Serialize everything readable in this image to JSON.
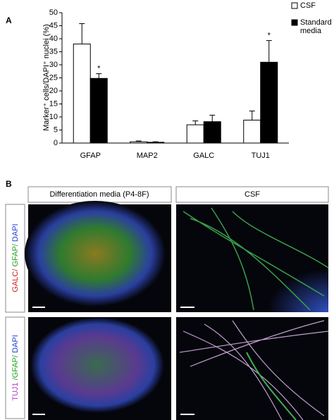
{
  "panel_a": {
    "label": "A"
  },
  "chart_data": {
    "type": "bar",
    "y_label": "Marker⁺ cells/DAPI⁺ nuclei (%)",
    "categories": [
      "GFAP",
      "MAP2",
      "GALC",
      "TUJ1"
    ],
    "series": [
      {
        "name": "CSF",
        "color": "#ffffff",
        "values": [
          38,
          0.5,
          7,
          8.8
        ],
        "errors": [
          7.8,
          0.3,
          1.5,
          3.5
        ]
      },
      {
        "name": "Standard media",
        "color": "#000000",
        "values": [
          24.8,
          0.3,
          8.2,
          31
        ],
        "errors": [
          1.8,
          0.2,
          2.5,
          8.3
        ]
      }
    ],
    "annotations": [
      {
        "text": "*",
        "category": "GFAP",
        "series": "Standard media"
      },
      {
        "text": "*",
        "category": "TUJ1",
        "series": "Standard media"
      }
    ],
    "ylim": [
      0,
      50
    ],
    "yticks": [
      0,
      5,
      10,
      15,
      20,
      25,
      30,
      35,
      40,
      45,
      50
    ],
    "grid": false,
    "legend": "top-right"
  },
  "panel_b": {
    "label": "B",
    "columns": [
      "Differentiation media (P4-8F)",
      "CSF"
    ],
    "rows": [
      [
        "GALC/ ",
        "GFAP/ ",
        "DAPI"
      ],
      [
        "TUJ1 ",
        "/GFAP/ ",
        "DAPI"
      ]
    ]
  }
}
